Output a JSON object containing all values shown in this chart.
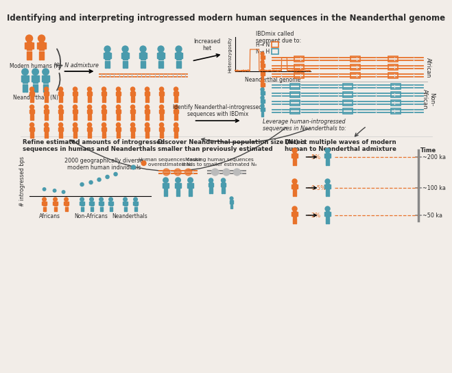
{
  "title": "Identifying and interpreting introgressed modern human sequences in the Neanderthal genome",
  "bg_color": "#f2ede8",
  "orange": "#E8722A",
  "blue": "#4A9BAD",
  "gray": "#888888",
  "text_color": "#2a2a2a",
  "section1_title": "Refine estimated amounts of introgressed\nsequences in humans and Neanderthals",
  "section2_title": "Discover Neanderthal population size (N₀) is\nsmaller than previously estimated",
  "section3_title": "Detect multiple waves of modern\nhuman to Neanderthal admixture",
  "label_africans": "Africans",
  "label_nonafrican": "Non-Africans",
  "label_neanderthals": "Neanderthals",
  "label_modern_humans": "Modern humans (H)",
  "label_neanderthals_n": "Neanderthals (N)",
  "label_2000": "2000 geographically diverse\nmodern human individuals",
  "label_h_n": "H→ N admixture",
  "label_increased_het": "Increased\nhet",
  "label_neanderthal_genome": "Neanderthal genome",
  "label_heterozygosity": "Heterozygosity",
  "label_ibdmix_arrow": "Identify Neanderthal-introgressed\nsequences with IBDmix",
  "label_ibdmix_title": "IBDmix called\nsegment due to:",
  "label_h_to_n": "H→ N",
  "label_n_to_h": "N→ H",
  "label_african": "African",
  "label_nonafrican2": "Non-\nAfrican",
  "label_leverage": "Leverage human-introgressed\nsequences in Neanderthals to:",
  "label_human_cause": "Human sequences cause\noverestimated N₀",
  "label_masking": "Masking human sequences\nleads to smaller estimated N₀",
  "label_time": "Time",
  "label_5pct": "~5%",
  "label_05pct": "~0.5%",
  "label_2pct": "~2%",
  "label_200ka": "~200 ka",
  "label_100ka": "~100 ka",
  "label_50ka": "~50 ka",
  "label_introgressed_bps": "# introgressed bps"
}
